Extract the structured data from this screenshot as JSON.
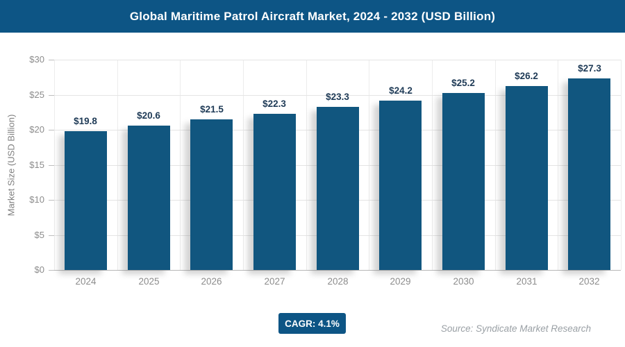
{
  "banner": {
    "title": "Global Maritime Patrol Aircraft Market, 2024 - 2032 (USD Billion)"
  },
  "chart_data": {
    "type": "bar",
    "title": "Global Maritime Patrol Aircraft Market, 2024 - 2032 (USD Billion)",
    "categories": [
      "2024",
      "2025",
      "2026",
      "2027",
      "2028",
      "2029",
      "2030",
      "2031",
      "2032"
    ],
    "values": [
      19.8,
      20.6,
      21.5,
      22.3,
      23.3,
      24.2,
      25.2,
      26.2,
      27.3
    ],
    "value_labels": [
      "$19.8",
      "$20.6",
      "$21.5",
      "$22.3",
      "$23.3",
      "$24.2",
      "$25.2",
      "$26.2",
      "$27.3"
    ],
    "xlabel": "",
    "ylabel": "Market Size (USD Billion)",
    "ylim": [
      0,
      30
    ],
    "yticks": [
      0,
      5,
      10,
      15,
      20,
      25,
      30
    ],
    "ytick_labels": [
      "$0",
      "$5",
      "$10",
      "$15",
      "$20",
      "$25",
      "$30"
    ],
    "grid": true,
    "legend": "none"
  },
  "footer": {
    "cagr": "CAGR: 4.1%",
    "source": "Source: Syndicate Market Research"
  },
  "colors": {
    "banner_bg": "#0d5585",
    "bar": "#11567f",
    "badge_bg": "#0d5585",
    "value_label": "#1e3a56",
    "axis_text": "#8c8c8c"
  }
}
